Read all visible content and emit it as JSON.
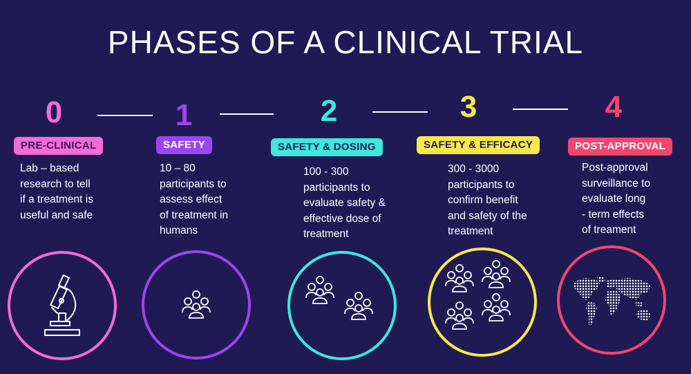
{
  "title": "PHASES OF A CLINICAL TRIAL",
  "phases": [
    {
      "number": "0",
      "label": "PRE-CLINICAL",
      "description": "Lab – based\nresearch to tell\nif a treatment is\nuseful and safe",
      "color": "#f26bd6",
      "icon": "microscope-icon"
    },
    {
      "number": "1",
      "label": "SAFETY",
      "description": "10 – 80\nparticipants to\nassess effect\nof treatment in\nhumans",
      "color": "#9b45f0",
      "icon": "people-group-icon"
    },
    {
      "number": "2",
      "label": "SAFETY & DOSING",
      "description": "100 - 300\nparticipants to\nevaluate safety &\neffective dose of\ntreatment",
      "color": "#3ee7e0",
      "icon": "people-groups-icon"
    },
    {
      "number": "3",
      "label": "SAFETY & EFFICACY",
      "description": "300 - 3000\nparticipants to\nconfirm benefit\nand safety of the\ntreatment",
      "color": "#f7e84a",
      "icon": "people-groups-icon"
    },
    {
      "number": "4",
      "label": "POST-APPROVAL",
      "description": "Post-approval\nsurveillance to\nevaluate long\n- term effects\nof treament",
      "color": "#f0466e",
      "icon": "world-map-icon"
    }
  ]
}
